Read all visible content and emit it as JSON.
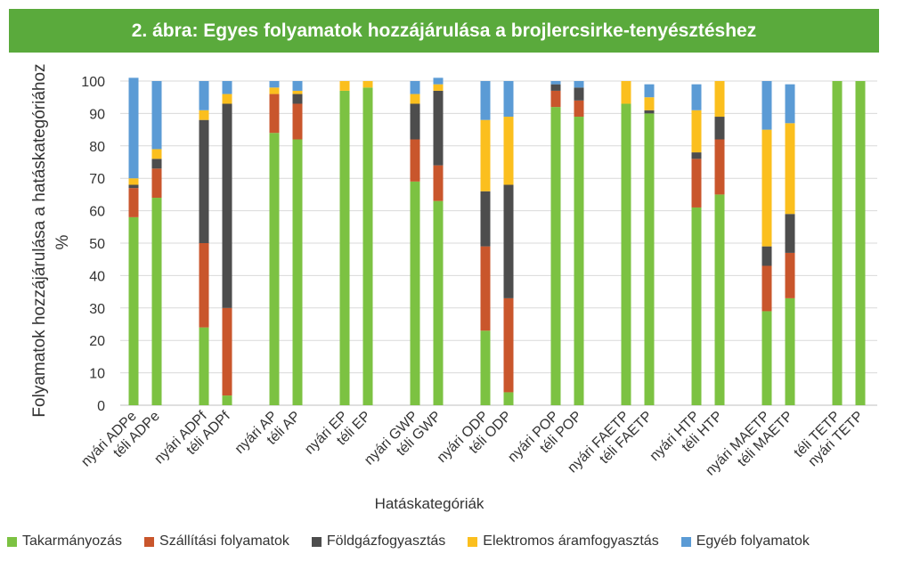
{
  "chart_data": {
    "type": "bar",
    "stacked": true,
    "title": "2. ábra: Egyes folyamatok hozzájárulása a brojlercsirke-tenyésztéshez",
    "xlabel": "Hatáskategóriák",
    "ylabel": "Folyamatok hozzájárulása a hatáskategóriához",
    "ylabel2": "%",
    "ylim": [
      0,
      100
    ],
    "yticks": [
      0,
      10,
      20,
      30,
      40,
      50,
      60,
      70,
      80,
      90,
      100
    ],
    "grid": true,
    "legend_position": "bottom",
    "categories": [
      "nyári ADPe",
      "téli ADPe",
      "nyári ADPf",
      "téli ADPf",
      "nyári AP",
      "téli AP",
      "nyári EP",
      "téli EP",
      "nyári GWP",
      "téli GWP",
      "nyári ODP",
      "téli ODP",
      "nyári POP",
      "téli POP",
      "nyári FAETP",
      "téli FAETP",
      "nyári HTP",
      "téli HTP",
      "nyári MAETP",
      "téli MAETP",
      "téli TETP",
      "nyári TETP"
    ],
    "series": [
      {
        "name": "Takarmányozás",
        "color": "#7cc242",
        "values": [
          58,
          64,
          24,
          3,
          84,
          82,
          97,
          98,
          69,
          63,
          23,
          4,
          92,
          89,
          93,
          90,
          61,
          65,
          29,
          33,
          100,
          100
        ]
      },
      {
        "name": "Szállítási folyamatok",
        "color": "#c9562c",
        "values": [
          9,
          9,
          26,
          27,
          12,
          11,
          0,
          0,
          13,
          11,
          26,
          29,
          5,
          5,
          0,
          0,
          15,
          17,
          14,
          14,
          0,
          0
        ]
      },
      {
        "name": "Földgázfogyasztás",
        "color": "#4d4d4d",
        "values": [
          1,
          3,
          38,
          63,
          0,
          3,
          0,
          0,
          11,
          23,
          17,
          35,
          2,
          4,
          0,
          1,
          2,
          7,
          6,
          12,
          0,
          0
        ]
      },
      {
        "name": "Elektromos áramfogyasztás",
        "color": "#fbbf1e",
        "values": [
          2,
          3,
          3,
          3,
          2,
          1,
          3,
          2,
          3,
          2,
          22,
          21,
          0,
          0,
          7,
          4,
          13,
          11,
          36,
          28,
          0,
          0
        ]
      },
      {
        "name": "Egyéb folyamatok",
        "color": "#5b9bd5",
        "values": [
          31,
          21,
          9,
          4,
          2,
          3,
          0,
          0,
          4,
          2,
          12,
          11,
          1,
          2,
          0,
          4,
          8,
          0,
          15,
          12,
          0,
          0
        ]
      }
    ]
  }
}
